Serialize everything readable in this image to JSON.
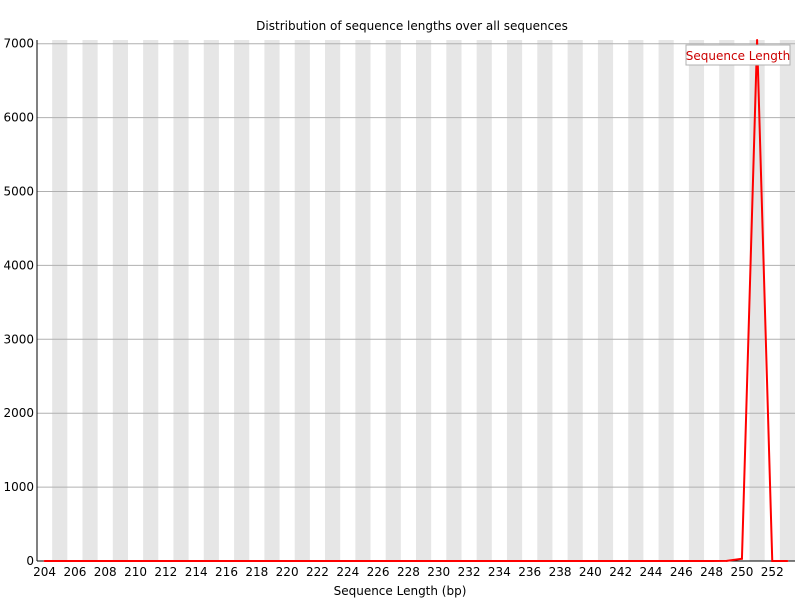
{
  "chart_data": {
    "type": "line",
    "title": "Distribution of sequence lengths over all sequences",
    "xlabel": "Sequence Length (bp)",
    "ylabel": "",
    "x": [
      204,
      205,
      206,
      207,
      208,
      209,
      210,
      211,
      212,
      213,
      214,
      215,
      216,
      217,
      218,
      219,
      220,
      221,
      222,
      223,
      224,
      225,
      226,
      227,
      228,
      229,
      230,
      231,
      232,
      233,
      234,
      235,
      236,
      237,
      238,
      239,
      240,
      241,
      242,
      243,
      244,
      245,
      246,
      247,
      248,
      249,
      250,
      251,
      252,
      253
    ],
    "x_ticks": [
      "204",
      "206",
      "208",
      "210",
      "212",
      "214",
      "216",
      "218",
      "220",
      "222",
      "224",
      "226",
      "228",
      "230",
      "232",
      "234",
      "236",
      "238",
      "240",
      "242",
      "244",
      "246",
      "248",
      "250",
      "252"
    ],
    "y_ticks": [
      "0",
      "1000",
      "2000",
      "3000",
      "4000",
      "5000",
      "6000",
      "7000"
    ],
    "ylim": [
      0,
      7050
    ],
    "xlim": [
      203.5,
      253.5
    ],
    "series": [
      {
        "name": "Sequence Length",
        "color": "#ff0000",
        "values": [
          0,
          0,
          0,
          0,
          0,
          0,
          0,
          0,
          0,
          0,
          0,
          0,
          0,
          0,
          0,
          0,
          0,
          0,
          0,
          0,
          0,
          0,
          0,
          0,
          0,
          0,
          0,
          0,
          0,
          0,
          0,
          0,
          0,
          0,
          0,
          0,
          0,
          0,
          0,
          0,
          0,
          0,
          0,
          0,
          0,
          2,
          30,
          7050,
          0,
          0
        ]
      }
    ],
    "legend": {
      "placement": "top-right"
    },
    "grid": true,
    "band_color": "#e6e6e6",
    "gridline_color": "#b0b0b0"
  }
}
